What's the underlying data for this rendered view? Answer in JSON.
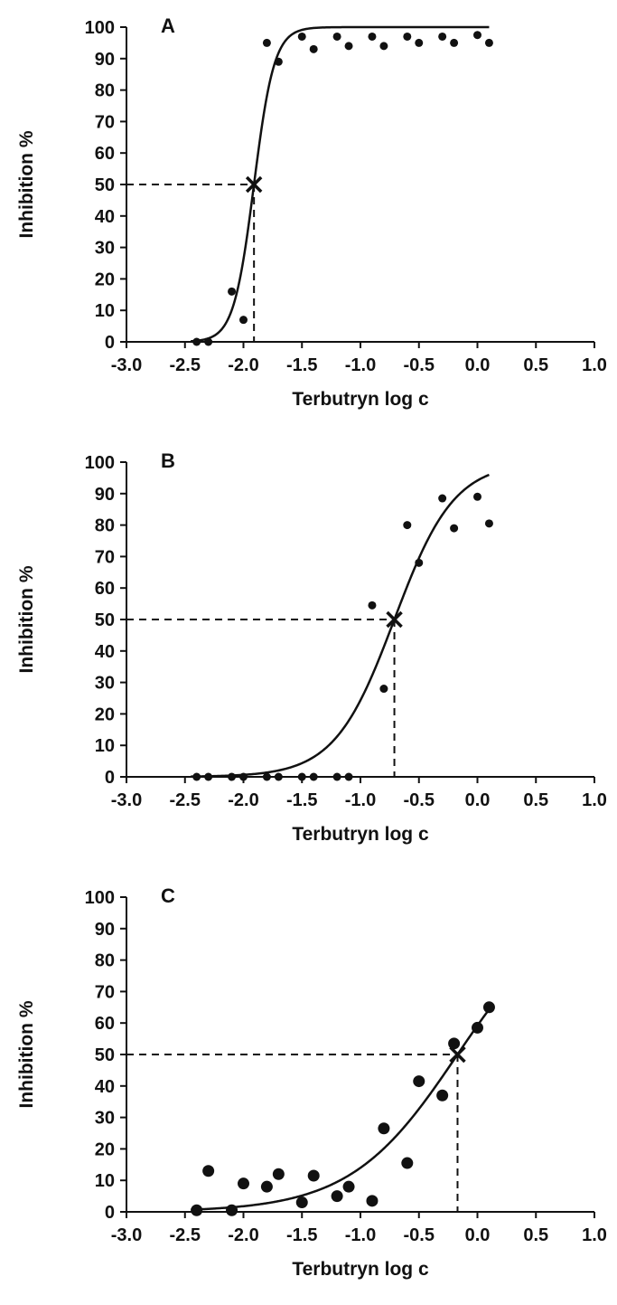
{
  "chart_data": [
    {
      "type": "scatter",
      "panel_label": "A",
      "xlabel": "Terbutryn log c",
      "ylabel": "Inhibition %",
      "xlim": [
        -3.0,
        1.0
      ],
      "ylim": [
        0,
        100
      ],
      "xticks": [
        "-3.0",
        "-2.5",
        "-2.0",
        "-1.5",
        "-1.0",
        "-0.5",
        "0.0",
        "0.5",
        "1.0"
      ],
      "yticks": [
        "0",
        "10",
        "20",
        "30",
        "40",
        "50",
        "60",
        "70",
        "80",
        "90",
        "100"
      ],
      "grid": false,
      "points": [
        {
          "x": -2.4,
          "y": 0
        },
        {
          "x": -2.3,
          "y": 0
        },
        {
          "x": -2.1,
          "y": 16
        },
        {
          "x": -2.0,
          "y": 7
        },
        {
          "x": -1.8,
          "y": 95
        },
        {
          "x": -1.7,
          "y": 89
        },
        {
          "x": -1.5,
          "y": 97
        },
        {
          "x": -1.4,
          "y": 93
        },
        {
          "x": -1.2,
          "y": 97
        },
        {
          "x": -1.1,
          "y": 94
        },
        {
          "x": -0.9,
          "y": 97
        },
        {
          "x": -0.8,
          "y": 94
        },
        {
          "x": -0.6,
          "y": 97
        },
        {
          "x": -0.5,
          "y": 95
        },
        {
          "x": -0.3,
          "y": 97
        },
        {
          "x": -0.2,
          "y": 95
        },
        {
          "x": 0.0,
          "y": 97.5
        },
        {
          "x": 0.1,
          "y": 95
        }
      ],
      "fit": {
        "model": "sigmoid",
        "bottom": 0,
        "top": 100,
        "logEC50": -1.91,
        "hill": 5.0,
        "x_range": [
          -2.45,
          0.1
        ]
      },
      "ec50_marker": {
        "x": -1.91,
        "y": 50
      }
    },
    {
      "type": "scatter",
      "panel_label": "B",
      "xlabel": "Terbutryn log c",
      "ylabel": "Inhibition %",
      "xlim": [
        -3.0,
        1.0
      ],
      "ylim": [
        0,
        100
      ],
      "xticks": [
        "-3.0",
        "-2.5",
        "-2.0",
        "-1.5",
        "-1.0",
        "-0.5",
        "0.0",
        "0.5",
        "1.0"
      ],
      "yticks": [
        "0",
        "10",
        "20",
        "30",
        "40",
        "50",
        "60",
        "70",
        "80",
        "90",
        "100"
      ],
      "grid": false,
      "points": [
        {
          "x": -2.4,
          "y": 0
        },
        {
          "x": -2.3,
          "y": 0
        },
        {
          "x": -2.1,
          "y": 0
        },
        {
          "x": -2.0,
          "y": 0
        },
        {
          "x": -1.8,
          "y": 0
        },
        {
          "x": -1.7,
          "y": 0
        },
        {
          "x": -1.5,
          "y": 0
        },
        {
          "x": -1.4,
          "y": 0
        },
        {
          "x": -1.2,
          "y": 0
        },
        {
          "x": -1.1,
          "y": 0
        },
        {
          "x": -0.9,
          "y": 54.5
        },
        {
          "x": -0.8,
          "y": 28
        },
        {
          "x": -0.6,
          "y": 80
        },
        {
          "x": -0.5,
          "y": 68
        },
        {
          "x": -0.3,
          "y": 88.5
        },
        {
          "x": -0.2,
          "y": 79
        },
        {
          "x": 0.0,
          "y": 89
        },
        {
          "x": 0.1,
          "y": 80.5
        }
      ],
      "fit": {
        "model": "sigmoid",
        "bottom": 0,
        "top": 100,
        "logEC50": -0.71,
        "hill": 1.7,
        "x_range": [
          -2.45,
          0.1
        ]
      },
      "ec50_marker": {
        "x": -0.71,
        "y": 50
      }
    },
    {
      "type": "scatter",
      "panel_label": "C",
      "xlabel": "Terbutryn log c",
      "ylabel": "Inhibition %",
      "xlim": [
        -3.0,
        1.0
      ],
      "ylim": [
        0,
        100
      ],
      "xticks": [
        "-3.0",
        "-2.5",
        "-2.0",
        "-1.5",
        "-1.0",
        "-0.5",
        "0.0",
        "0.5",
        "1.0"
      ],
      "yticks": [
        "0",
        "10",
        "20",
        "30",
        "40",
        "50",
        "60",
        "70",
        "80",
        "90",
        "100"
      ],
      "grid": false,
      "points": [
        {
          "x": -2.4,
          "y": 0.5
        },
        {
          "x": -2.3,
          "y": 13
        },
        {
          "x": -2.1,
          "y": 0.5
        },
        {
          "x": -2.0,
          "y": 9
        },
        {
          "x": -1.8,
          "y": 8
        },
        {
          "x": -1.7,
          "y": 12
        },
        {
          "x": -1.5,
          "y": 3
        },
        {
          "x": -1.4,
          "y": 11.5
        },
        {
          "x": -1.2,
          "y": 5
        },
        {
          "x": -1.1,
          "y": 8
        },
        {
          "x": -0.9,
          "y": 3.5
        },
        {
          "x": -0.8,
          "y": 26.5
        },
        {
          "x": -0.6,
          "y": 15.5
        },
        {
          "x": -0.5,
          "y": 41.5
        },
        {
          "x": -0.3,
          "y": 37
        },
        {
          "x": -0.2,
          "y": 53.5
        },
        {
          "x": 0.0,
          "y": 58.5
        },
        {
          "x": 0.1,
          "y": 65
        }
      ],
      "fit": {
        "model": "sigmoid",
        "bottom": 0,
        "top": 100,
        "logEC50": -0.17,
        "hill": 0.95,
        "x_range": [
          -2.45,
          0.12
        ]
      },
      "ec50_marker": {
        "x": -0.17,
        "y": 50
      }
    }
  ]
}
